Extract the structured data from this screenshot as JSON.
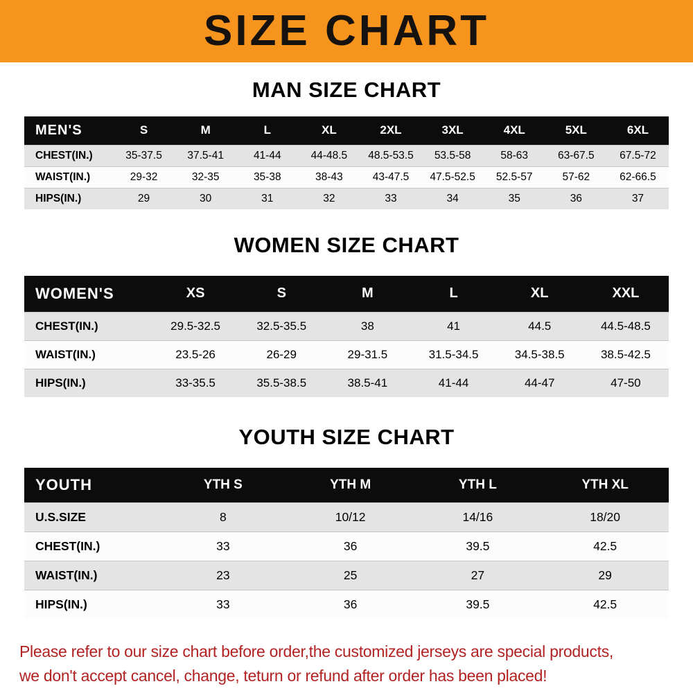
{
  "banner": {
    "title": "SIZE CHART"
  },
  "colors": {
    "banner_bg": "#f7941d",
    "table_header_bg": "#0c0c0c",
    "row_stripe": "#e4e4e4",
    "disclaimer_text": "#b22222"
  },
  "sections": [
    {
      "heading": "MAN SIZE CHART",
      "table": {
        "header": [
          "MEN'S",
          "S",
          "M",
          "L",
          "XL",
          "2XL",
          "3XL",
          "4XL",
          "5XL",
          "6XL"
        ],
        "rows": [
          [
            "CHEST(IN.)",
            "35-37.5",
            "37.5-41",
            "41-44",
            "44-48.5",
            "48.5-53.5",
            "53.5-58",
            "58-63",
            "63-67.5",
            "67.5-72"
          ],
          [
            "WAIST(IN.)",
            "29-32",
            "32-35",
            "35-38",
            "38-43",
            "43-47.5",
            "47.5-52.5",
            "52.5-57",
            "57-62",
            "62-66.5"
          ],
          [
            "HIPS(IN.)",
            "29",
            "30",
            "31",
            "32",
            "33",
            "34",
            "35",
            "36",
            "37"
          ]
        ]
      }
    },
    {
      "heading": "WOMEN SIZE CHART",
      "table": {
        "header": [
          "WOMEN'S",
          "XS",
          "S",
          "M",
          "L",
          "XL",
          "XXL"
        ],
        "rows": [
          [
            "CHEST(IN.)",
            "29.5-32.5",
            "32.5-35.5",
            "38",
            "41",
            "44.5",
            "44.5-48.5"
          ],
          [
            "WAIST(IN.)",
            "23.5-26",
            "26-29",
            "29-31.5",
            "31.5-34.5",
            "34.5-38.5",
            "38.5-42.5"
          ],
          [
            "HIPS(IN.)",
            "33-35.5",
            "35.5-38.5",
            "38.5-41",
            "41-44",
            "44-47",
            "47-50"
          ]
        ]
      }
    },
    {
      "heading": "YOUTH SIZE CHART",
      "table": {
        "header": [
          "YOUTH",
          "YTH S",
          "YTH M",
          "YTH L",
          "YTH XL"
        ],
        "rows": [
          [
            "U.S.SIZE",
            "8",
            "10/12",
            "14/16",
            "18/20"
          ],
          [
            "CHEST(IN.)",
            "33",
            "36",
            "39.5",
            "42.5"
          ],
          [
            "WAIST(IN.)",
            "23",
            "25",
            "27",
            "29"
          ],
          [
            "HIPS(IN.)",
            "33",
            "36",
            "39.5",
            "42.5"
          ]
        ]
      }
    }
  ],
  "disclaimer": {
    "line1": "Please refer to our size chart before order,the customized jerseys are special products,",
    "line2": "we don't accept cancel, change, teturn or refund after order has been placed!"
  }
}
